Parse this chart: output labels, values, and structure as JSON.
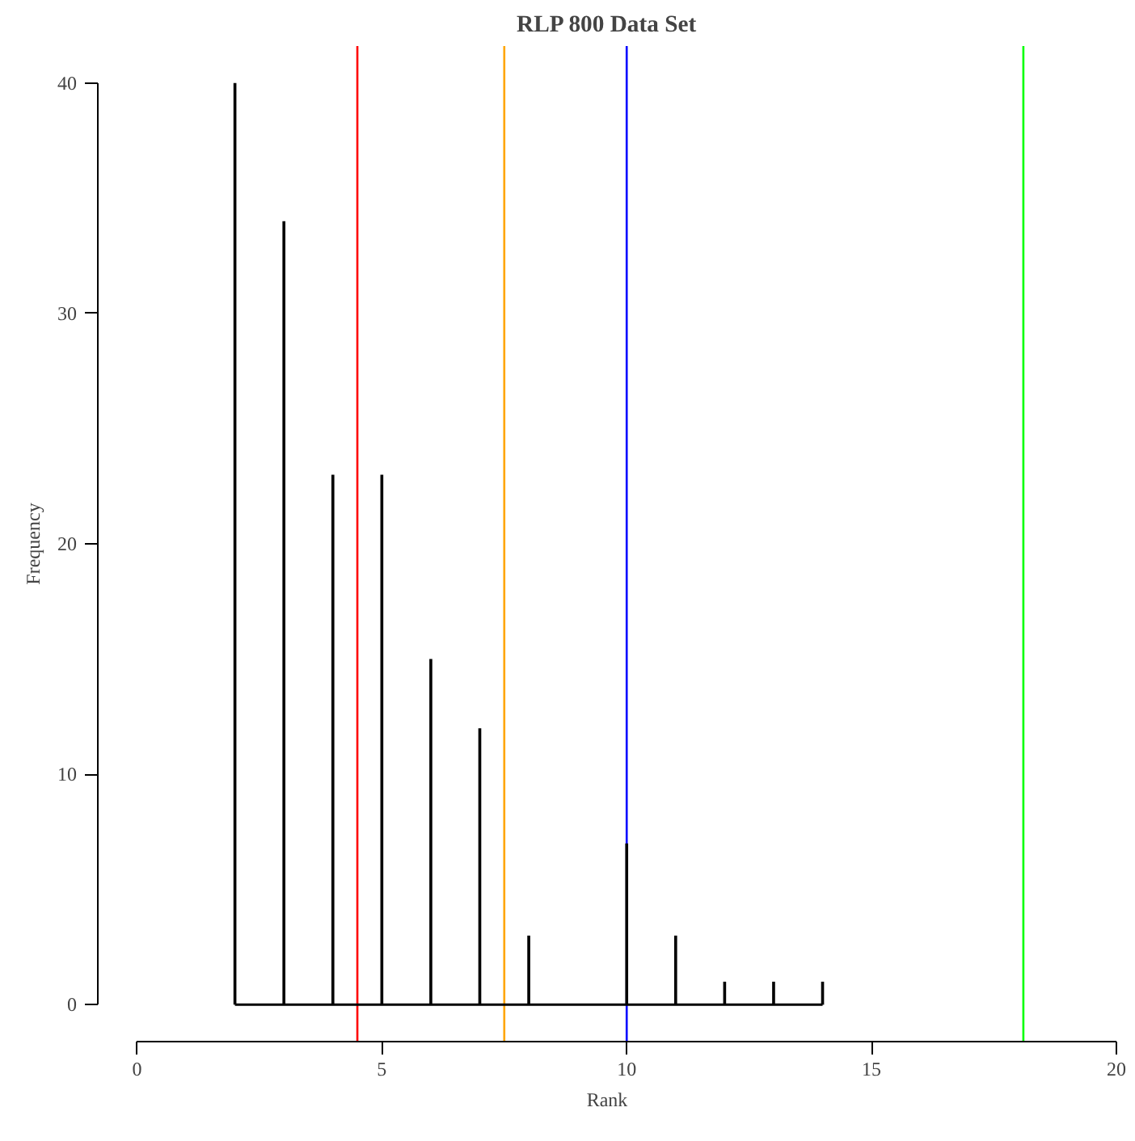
{
  "chart_data": {
    "type": "bar",
    "title": "RLP 800 Data Set",
    "xlabel": "Rank",
    "ylabel": "Frequency",
    "x": [
      2,
      3,
      4,
      5,
      6,
      7,
      8,
      9,
      10,
      11,
      12,
      13,
      14
    ],
    "series": [
      {
        "color": "#000000",
        "values": [
          40,
          34,
          23,
          23,
          15,
          12,
          3,
          0,
          7,
          3,
          1,
          1,
          1
        ]
      },
      {
        "type": "line",
        "color": "#000000",
        "x": [
          2,
          14
        ],
        "values": [
          0,
          0
        ]
      }
    ],
    "xlim": [
      -0.8,
      20
    ],
    "ylim": [
      -1.6,
      41.6
    ],
    "xticks": [
      0,
      5,
      10,
      15,
      20
    ],
    "yticks": [
      0,
      10,
      20,
      30,
      40
    ],
    "ref_lines": [
      {
        "axis": "x",
        "value": 4.5,
        "color": "#ff0000"
      },
      {
        "axis": "x",
        "value": 7.5,
        "color": "#ffa500"
      },
      {
        "axis": "x",
        "value": 10,
        "color": "#0000ff"
      },
      {
        "axis": "x",
        "value": 18.1,
        "color": "#00ff00"
      }
    ],
    "grid": false
  }
}
